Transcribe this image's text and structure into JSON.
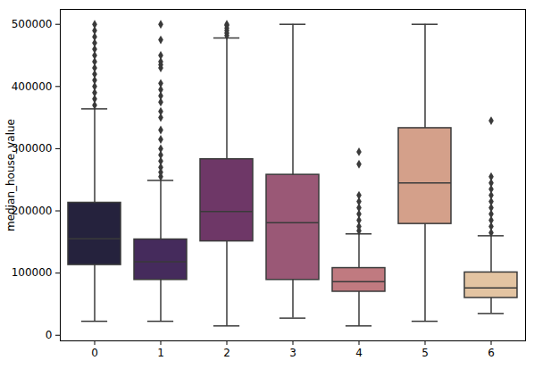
{
  "chart_data": {
    "type": "box",
    "y_label": "median_house_value",
    "categories": [
      "0",
      "1",
      "2",
      "3",
      "4",
      "5",
      "6"
    ],
    "colors": [
      "#25223d",
      "#452b5c",
      "#6e3767",
      "#9a5876",
      "#c07a80",
      "#d4a08a",
      "#e3c4a2"
    ],
    "whisker_low": [
      22500,
      22500,
      15000,
      27500,
      15000,
      22500,
      35000
    ],
    "q1": [
      113000,
      89000,
      151000,
      89000,
      70000,
      179000,
      60000
    ],
    "median": [
      155000,
      118000,
      199000,
      181000,
      86000,
      245000,
      76000
    ],
    "q3": [
      213000,
      154000,
      283000,
      258000,
      108000,
      333000,
      101000
    ],
    "whisker_high": [
      364000,
      249000,
      478000,
      500000,
      163000,
      500000,
      160000
    ],
    "outliers": [
      [
        370000,
        380000,
        390000,
        400000,
        410000,
        420000,
        430000,
        440000,
        450000,
        460000,
        470000,
        480000,
        490000,
        500000
      ],
      [
        255000,
        262000,
        270000,
        280000,
        290000,
        300000,
        315000,
        330000,
        350000,
        360000,
        375000,
        385000,
        395000,
        405000,
        430000,
        435000,
        440000,
        450000,
        475000,
        500000
      ],
      [
        482000,
        486000,
        490000,
        494000,
        498000,
        500000
      ],
      [],
      [
        168000,
        175000,
        185000,
        195000,
        205000,
        215000,
        225000,
        275000,
        295000
      ],
      [],
      [
        165000,
        175000,
        185000,
        195000,
        205000,
        215000,
        225000,
        235000,
        245000,
        255000,
        345000
      ]
    ],
    "ylim": [
      -9000,
      524000
    ],
    "yticks": [
      0,
      100000,
      200000,
      300000,
      400000,
      500000
    ]
  }
}
